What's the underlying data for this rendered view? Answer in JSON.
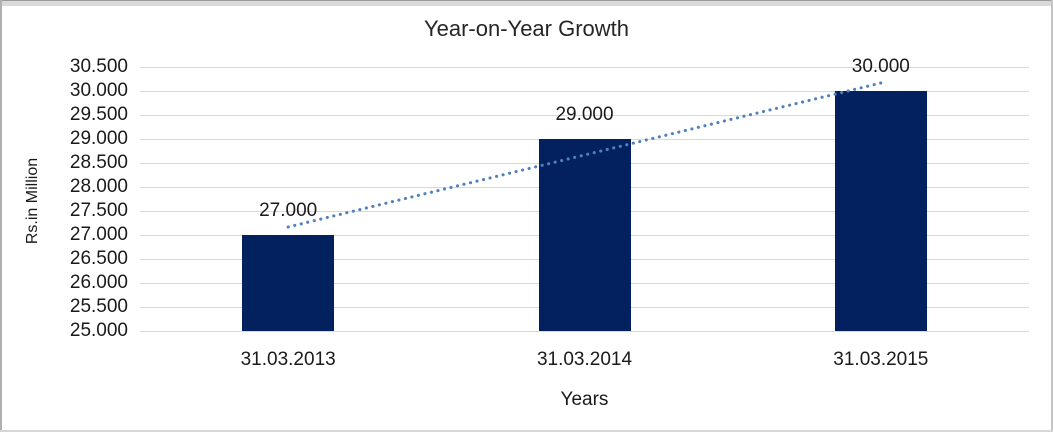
{
  "chart": {
    "title": "Year-on-Year Growth",
    "y_axis_title": "Rs.in Million",
    "x_axis_title": "Years"
  },
  "colors": {
    "bar_fill": "#03215F",
    "trendline": "#4F81BD",
    "gridline": "#D9D9D9",
    "text": "#1A1A1A",
    "frame_strip": "#D9D9D9"
  },
  "chart_data": {
    "type": "bar",
    "title": "Year-on-Year Growth",
    "categories": [
      "31.03.2013",
      "31.03.2014",
      "31.03.2015"
    ],
    "values": [
      27,
      29,
      30
    ],
    "data_labels": [
      "27.000",
      "29.000",
      "30.000"
    ],
    "xlabel": "Years",
    "ylabel": "Rs.in Million",
    "ylim": [
      25,
      30.5
    ],
    "ytick_step": 0.5,
    "ytick_labels": [
      "25.000",
      "25.500",
      "26.000",
      "26.500",
      "27.000",
      "27.500",
      "28.000",
      "28.500",
      "29.000",
      "29.500",
      "30.000",
      "30.500"
    ],
    "grid": "horizontal",
    "legend": false,
    "trendline": {
      "type": "linear",
      "style": "dotted",
      "color": "#4F81BD"
    }
  }
}
